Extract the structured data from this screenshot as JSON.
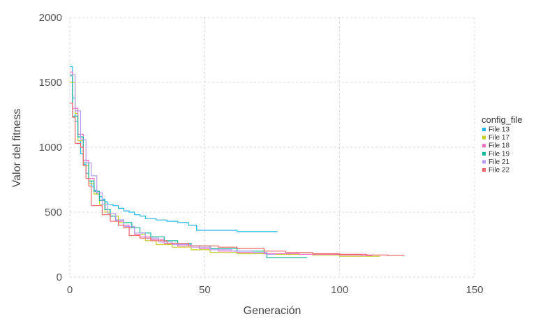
{
  "chart_data": {
    "type": "line",
    "xlabel": "Generación",
    "ylabel": "Valor del fitness",
    "xlim": [
      0,
      150
    ],
    "ylim": [
      0,
      2000
    ],
    "x_ticks": [
      0,
      50,
      100,
      150
    ],
    "y_ticks": [
      0,
      500,
      1000,
      1500,
      2000
    ],
    "grid": true,
    "legend": {
      "title": "config_file",
      "position": "right"
    },
    "series": [
      {
        "name": "File 13",
        "color": "#1fb8e6",
        "points": [
          [
            0,
            1620
          ],
          [
            1,
            1380
          ],
          [
            2,
            1200
          ],
          [
            3,
            1050
          ],
          [
            4,
            950
          ],
          [
            5,
            870
          ],
          [
            6,
            800
          ],
          [
            7,
            740
          ],
          [
            8,
            700
          ],
          [
            9,
            670
          ],
          [
            10,
            640
          ],
          [
            11,
            620
          ],
          [
            12,
            600
          ],
          [
            13,
            580
          ],
          [
            14,
            560
          ],
          [
            16,
            550
          ],
          [
            18,
            530
          ],
          [
            20,
            510
          ],
          [
            22,
            500
          ],
          [
            24,
            480
          ],
          [
            26,
            470
          ],
          [
            28,
            450
          ],
          [
            32,
            440
          ],
          [
            36,
            430
          ],
          [
            40,
            420
          ],
          [
            44,
            400
          ],
          [
            47,
            360
          ],
          [
            55,
            360
          ],
          [
            62,
            350
          ],
          [
            70,
            350
          ],
          [
            77,
            350
          ]
        ]
      },
      {
        "name": "File 17",
        "color": "#c5cc2a",
        "points": [
          [
            0,
            1500
          ],
          [
            2,
            1260
          ],
          [
            3,
            1050
          ],
          [
            5,
            860
          ],
          [
            7,
            720
          ],
          [
            9,
            640
          ],
          [
            11,
            560
          ],
          [
            13,
            500
          ],
          [
            15,
            470
          ],
          [
            18,
            420
          ],
          [
            20,
            380
          ],
          [
            24,
            330
          ],
          [
            28,
            280
          ],
          [
            32,
            250
          ],
          [
            38,
            230
          ],
          [
            45,
            210
          ],
          [
            52,
            190
          ],
          [
            62,
            180
          ],
          [
            75,
            175
          ],
          [
            90,
            170
          ],
          [
            100,
            160
          ],
          [
            115,
            160
          ]
        ]
      },
      {
        "name": "File 18",
        "color": "#f06ec0",
        "points": [
          [
            0,
            1580
          ],
          [
            1,
            1300
          ],
          [
            3,
            1100
          ],
          [
            5,
            900
          ],
          [
            7,
            760
          ],
          [
            9,
            660
          ],
          [
            11,
            590
          ],
          [
            13,
            520
          ],
          [
            15,
            470
          ],
          [
            17,
            430
          ],
          [
            20,
            400
          ],
          [
            22,
            380
          ],
          [
            24,
            330
          ],
          [
            26,
            310
          ],
          [
            30,
            290
          ],
          [
            35,
            260
          ],
          [
            40,
            240
          ],
          [
            48,
            220
          ],
          [
            55,
            200
          ],
          [
            62,
            190
          ],
          [
            72,
            180
          ],
          [
            85,
            175
          ],
          [
            100,
            170
          ],
          [
            108,
            165
          ],
          [
            112,
            165
          ]
        ]
      },
      {
        "name": "File 19",
        "color": "#11b59a",
        "points": [
          [
            0,
            1550
          ],
          [
            1,
            1240
          ],
          [
            3,
            1080
          ],
          [
            5,
            880
          ],
          [
            7,
            740
          ],
          [
            9,
            660
          ],
          [
            11,
            590
          ],
          [
            13,
            520
          ],
          [
            15,
            470
          ],
          [
            17,
            440
          ],
          [
            20,
            420
          ],
          [
            23,
            380
          ],
          [
            26,
            340
          ],
          [
            30,
            310
          ],
          [
            35,
            280
          ],
          [
            40,
            260
          ],
          [
            45,
            240
          ],
          [
            52,
            220
          ],
          [
            62,
            200
          ],
          [
            72,
            190
          ],
          [
            73,
            150
          ],
          [
            80,
            150
          ],
          [
            88,
            150
          ]
        ]
      },
      {
        "name": "File 21",
        "color": "#b79cf0",
        "points": [
          [
            0,
            1560
          ],
          [
            2,
            1280
          ],
          [
            4,
            1060
          ],
          [
            6,
            880
          ],
          [
            8,
            780
          ],
          [
            10,
            650
          ],
          [
            12,
            560
          ],
          [
            14,
            490
          ],
          [
            17,
            440
          ],
          [
            20,
            390
          ],
          [
            24,
            340
          ],
          [
            28,
            300
          ],
          [
            33,
            270
          ],
          [
            38,
            250
          ],
          [
            45,
            230
          ],
          [
            52,
            210
          ],
          [
            60,
            200
          ],
          [
            68,
            190
          ],
          [
            73,
            175
          ],
          [
            76,
            170
          ]
        ]
      },
      {
        "name": "File 22",
        "color": "#f0696a",
        "points": [
          [
            0,
            1340
          ],
          [
            1,
            1230
          ],
          [
            2,
            1030
          ],
          [
            4,
            1000
          ],
          [
            5,
            860
          ],
          [
            6,
            760
          ],
          [
            7,
            700
          ],
          [
            8,
            550
          ],
          [
            10,
            550
          ],
          [
            12,
            480
          ],
          [
            15,
            430
          ],
          [
            18,
            400
          ],
          [
            20,
            380
          ],
          [
            22,
            320
          ],
          [
            26,
            300
          ],
          [
            30,
            280
          ],
          [
            36,
            260
          ],
          [
            44,
            240
          ],
          [
            55,
            230
          ],
          [
            62,
            220
          ],
          [
            72,
            200
          ],
          [
            80,
            190
          ],
          [
            90,
            180
          ],
          [
            100,
            175
          ],
          [
            110,
            170
          ],
          [
            118,
            165
          ],
          [
            124,
            165
          ]
        ]
      }
    ]
  }
}
